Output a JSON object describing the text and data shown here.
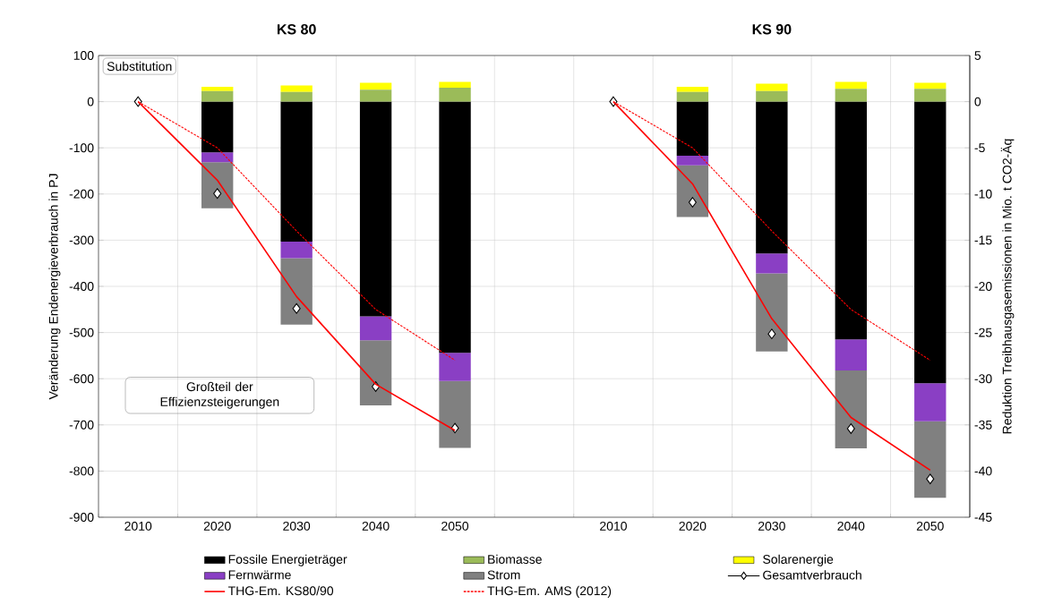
{
  "chart_data": {
    "type": "bar",
    "stacked": true,
    "grid": true,
    "legend": "bottom",
    "ylabel": "Veränderung Endenergieverbrauch in PJ",
    "y2label": "Reduktion Treibhausgasemissionen in Mio. t CO2-Äq",
    "annotations": [
      "KS 80",
      "KS 90",
      "Substitution",
      "Großteil der Effizienzsteigerungen"
    ],
    "categories": [
      "2010",
      "2020",
      "2030",
      "2040",
      "2050",
      null,
      "2010",
      "2020",
      "2030",
      "2040",
      "2050"
    ],
    "ylim": [
      -900,
      100
    ],
    "yticks": [
      -900,
      -800,
      -700,
      -600,
      -500,
      -400,
      -300,
      -200,
      -100,
      0,
      100
    ],
    "y2lim": [
      -45,
      5
    ],
    "y2ticks": [
      -45,
      -40,
      -35,
      -30,
      -25,
      -20,
      -15,
      -10,
      -5,
      0,
      5
    ],
    "series": [
      {
        "name": "Fossile Energieträger",
        "color": "#000000",
        "values": [
          null,
          -110,
          -303,
          -465,
          -544,
          null,
          null,
          -117,
          -329,
          -515,
          -610
        ]
      },
      {
        "name": "Biomasse",
        "color": "#9bbb59",
        "values": [
          null,
          23,
          21,
          26,
          30,
          null,
          null,
          21,
          23,
          28,
          28
        ]
      },
      {
        "name": "Solarenergie",
        "color": "#ffff00",
        "values": [
          null,
          9,
          14,
          15,
          13,
          null,
          null,
          11,
          16,
          15,
          13
        ]
      },
      {
        "name": "Fernwärme",
        "color": "#8a3fc4",
        "values": [
          null,
          -21,
          -36,
          -52,
          -61,
          null,
          null,
          -21,
          -43,
          -67,
          -82
        ]
      },
      {
        "name": "Strom",
        "color": "#808080",
        "values": [
          null,
          -100,
          -144,
          -141,
          -145,
          null,
          null,
          -112,
          -169,
          -169,
          -166
        ]
      },
      {
        "name": "Gesamtverbrauch",
        "type": "scatter",
        "marker": "diamond",
        "color": "#000000",
        "values": [
          0,
          -199,
          -448,
          -617,
          -707,
          null,
          0,
          -218,
          -503,
          -708,
          -817
        ]
      },
      {
        "name": "THG-Em. KS80/90",
        "type": "line",
        "axis": "y2",
        "line_style": "solid",
        "color": "#ff0000",
        "values": [
          0,
          -8.5,
          -21.1,
          -30.6,
          -35.6,
          null,
          0,
          -8.9,
          -23.5,
          -34.2,
          -39.9
        ]
      },
      {
        "name": "THG-Em. AMS (2012)",
        "type": "line",
        "axis": "y2",
        "line_style": "dotted",
        "color": "#ff0000",
        "values": [
          0,
          -5,
          -14,
          -22.5,
          -28,
          null,
          0,
          -5,
          -14,
          -22.5,
          -28
        ]
      }
    ]
  }
}
